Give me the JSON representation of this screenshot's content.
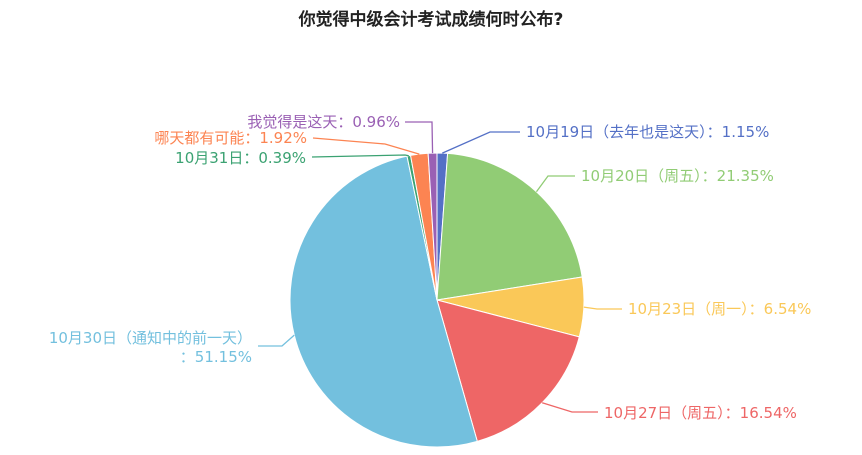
{
  "chart_data": {
    "type": "pie",
    "title": "你觉得中级会计考试成绩何时公布?",
    "slices": [
      {
        "label": "10月19日（去年也是这天）",
        "value": 1.15,
        "display": "10月19日（去年也是这天）：1.15%",
        "color": "#5470c6"
      },
      {
        "label": "10月20日（周五）",
        "value": 21.35,
        "display": "10月20日（周五）：21.35%",
        "color": "#91cc75"
      },
      {
        "label": "10月23日（周一）",
        "value": 6.54,
        "display": "10月23日（周一）：6.54%",
        "color": "#fac858"
      },
      {
        "label": "10月27日（周五）",
        "value": 16.54,
        "display": "10月27日（周五）：16.54%",
        "color": "#ee6666"
      },
      {
        "label": "10月30日（通知中的前一天）",
        "value": 51.15,
        "display_lines": [
          "10月30日（通知中的前一天）",
          "：51.15%"
        ],
        "color": "#73c0de"
      },
      {
        "label": "10月31日",
        "value": 0.39,
        "display": "10月31日：0.39%",
        "color": "#3ba272"
      },
      {
        "label": "哪天都有可能",
        "value": 1.92,
        "display": "哪天都有可能：1.92%",
        "color": "#fc8452"
      },
      {
        "label": "我觉得是这天",
        "value": 0.96,
        "display": "我觉得是这天：0.96%",
        "color": "#9a60b4"
      }
    ]
  }
}
